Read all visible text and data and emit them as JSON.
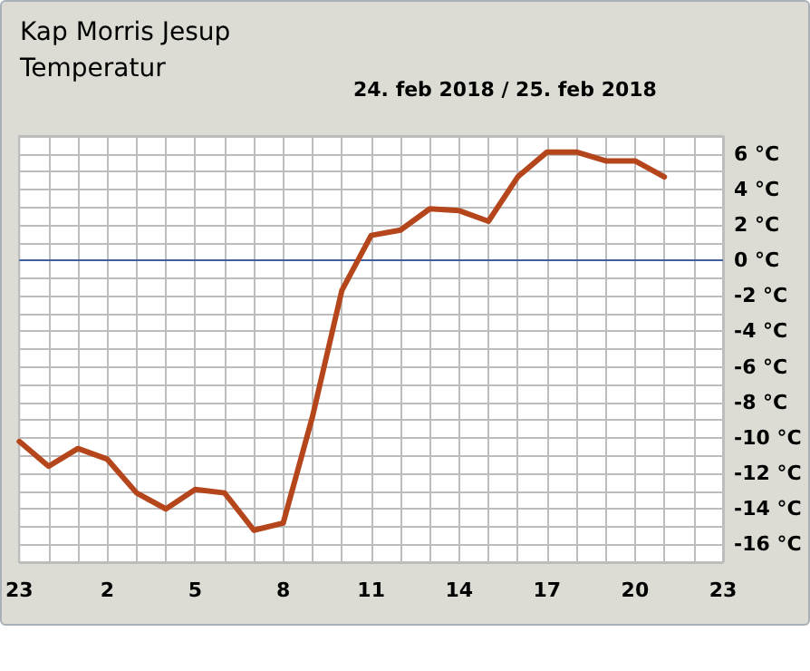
{
  "chart_data": {
    "type": "line",
    "title": "Kap Morris Jesup",
    "subtitle": "Temperatur",
    "annotations": [
      "24. feb 2018 / 25. feb 2018"
    ],
    "categories": [
      "23",
      null,
      null,
      "2",
      null,
      null,
      "5",
      null,
      null,
      "8",
      null,
      null,
      "11",
      null,
      null,
      "14",
      null,
      null,
      "17",
      null,
      null,
      "20",
      null,
      null,
      "23"
    ],
    "series": [
      {
        "color": "#b5451b",
        "values": [
          -10.2,
          -11.6,
          -10.6,
          -11.2,
          -13.1,
          -14.0,
          -12.9,
          -13.1,
          -15.2,
          -14.8,
          -8.8,
          -1.7,
          1.4,
          1.7,
          2.9,
          2.8,
          2.2,
          4.7,
          6.1,
          6.1,
          5.6,
          5.6,
          4.7,
          null,
          null
        ]
      }
    ],
    "ylim": [
      -17,
      7
    ],
    "yticks": [
      {
        "value": -17,
        "label": null
      },
      {
        "value": -16,
        "label": "-16 °C"
      },
      {
        "value": -15,
        "label": null
      },
      {
        "value": -14,
        "label": "-14 °C"
      },
      {
        "value": -13,
        "label": null
      },
      {
        "value": -12,
        "label": "-12 °C"
      },
      {
        "value": -11,
        "label": null
      },
      {
        "value": -10,
        "label": "-10 °C"
      },
      {
        "value": -9,
        "label": null
      },
      {
        "value": -8,
        "label": "-8 °C"
      },
      {
        "value": -7,
        "label": null
      },
      {
        "value": -6,
        "label": "-6 °C"
      },
      {
        "value": -5,
        "label": null
      },
      {
        "value": -4,
        "label": "-4 °C"
      },
      {
        "value": -3,
        "label": null
      },
      {
        "value": -2,
        "label": "-2 °C"
      },
      {
        "value": -1,
        "label": null
      },
      {
        "value": 0,
        "label": "0 °C"
      },
      {
        "value": 1,
        "label": null
      },
      {
        "value": 2,
        "label": "2 °C"
      },
      {
        "value": 3,
        "label": null
      },
      {
        "value": 4,
        "label": "4 °C"
      },
      {
        "value": 5,
        "label": null
      },
      {
        "value": 6,
        "label": "6 °C"
      },
      {
        "value": 7,
        "label": null
      }
    ],
    "ref_lines": [
      {
        "axis": "y",
        "value": 0,
        "color": "#3f5f9f"
      }
    ],
    "grid": true,
    "marker": "none",
    "line_style": "solid"
  }
}
